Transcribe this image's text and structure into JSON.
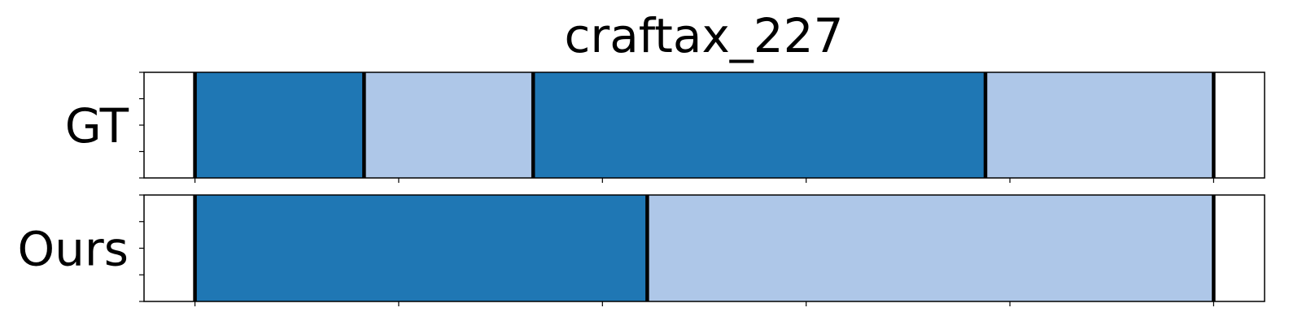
{
  "chart_data": {
    "type": "bar",
    "title": "craftax_227",
    "xlim": [
      -25,
      525
    ],
    "xticks": [
      0,
      100,
      200,
      300,
      400,
      500
    ],
    "show_tick_labels": false,
    "yticks_per_row": 5,
    "grid": false,
    "colors": {
      "dark": "#1f77b4",
      "light": "#aec7e8",
      "boundary": "#000000"
    },
    "rows": [
      {
        "label": "GT",
        "segments": [
          {
            "start": 0,
            "end": 83,
            "color": "dark"
          },
          {
            "start": 83,
            "end": 166,
            "color": "light"
          },
          {
            "start": 166,
            "end": 388,
            "color": "dark"
          },
          {
            "start": 388,
            "end": 500,
            "color": "light"
          }
        ]
      },
      {
        "label": "Ours",
        "segments": [
          {
            "start": 0,
            "end": 222,
            "color": "dark"
          },
          {
            "start": 222,
            "end": 500,
            "color": "light"
          }
        ]
      }
    ]
  }
}
